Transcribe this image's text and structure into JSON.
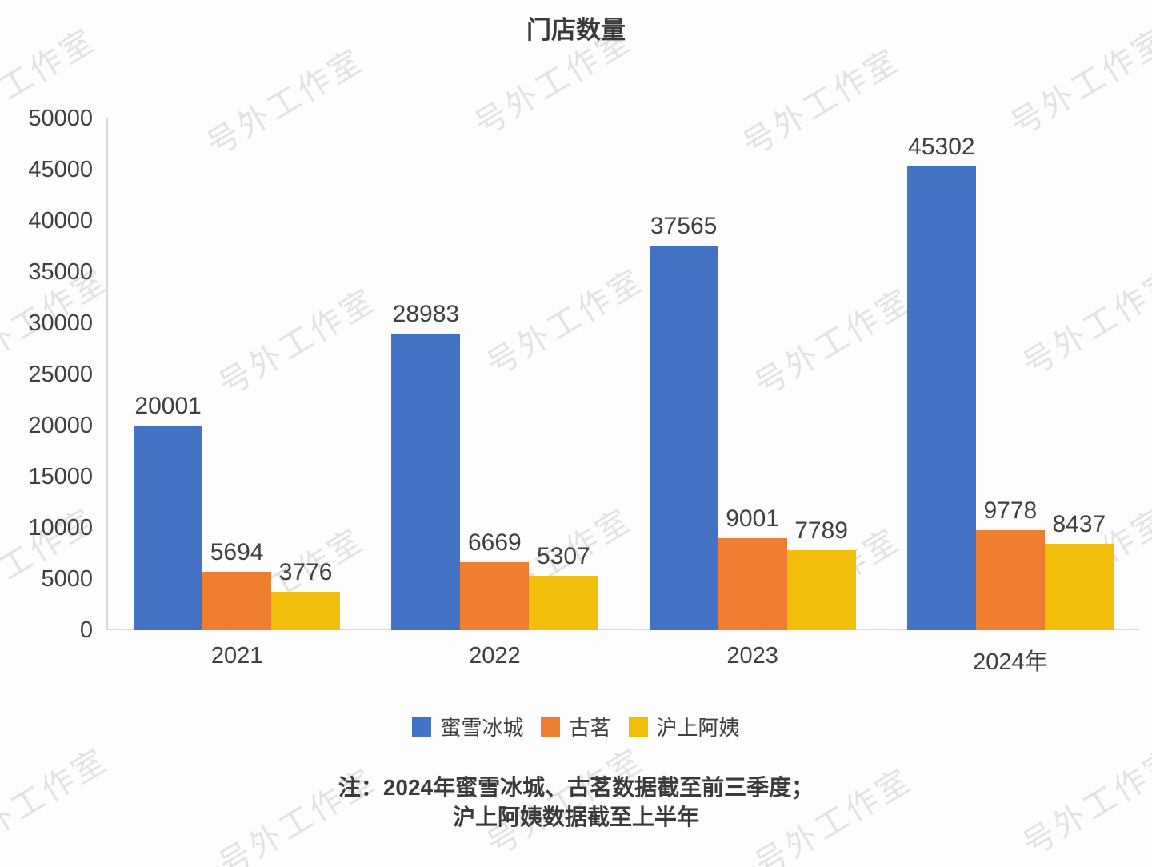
{
  "title": "门店数量",
  "watermark": {
    "text": "号外工作室"
  },
  "chart_data": {
    "type": "bar",
    "title": "门店数量",
    "categories": [
      "2021",
      "2022",
      "2023",
      "2024年"
    ],
    "series": [
      {
        "name": "蜜雪冰城",
        "color": "#4472C4",
        "values": [
          20001,
          28983,
          37565,
          45302
        ]
      },
      {
        "name": "古茗",
        "color": "#EE7D2F",
        "values": [
          5694,
          6669,
          9001,
          9778
        ]
      },
      {
        "name": "沪上阿姨",
        "color": "#F1BE0B",
        "values": [
          3776,
          5307,
          7789,
          8437
        ]
      }
    ],
    "xlabel": "",
    "ylabel": "",
    "ylim": [
      0,
      50000
    ],
    "y_ticks": [
      0,
      5000,
      10000,
      15000,
      20000,
      25000,
      30000,
      35000,
      40000,
      45000,
      50000
    ],
    "grid": false,
    "data_labels": true,
    "legend_position": "bottom"
  },
  "note": {
    "line1": "注：2024年蜜雪冰城、古茗数据截至前三季度；",
    "line2": "沪上阿姨数据截至上半年"
  },
  "colors": {
    "background": "#FDFDFD",
    "axis_line": "#D9D9D9",
    "text": "#3F3F3F",
    "watermark": "rgba(0,0,0,0.11)"
  }
}
